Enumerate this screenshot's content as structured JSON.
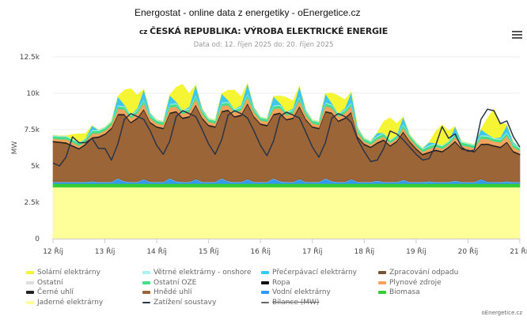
{
  "page_title": "Energostat - online data z energetiky - oEnergetice.cz",
  "chart_header": {
    "country_code": "cz",
    "title": "ČESKÁ REPUBLIKA: VÝROBA ELEKTRICKÉ ENERGIE",
    "subtitle": "Data od: 12. říjen 2025 do: 20. říjen 2025",
    "menu_icon": "hamburger-icon"
  },
  "credit": "oEnergetice.cz",
  "chart_data": {
    "type": "area",
    "stacked": true,
    "ylabel": "MW",
    "ylim": [
      0,
      12500
    ],
    "y_ticks": [
      "0",
      "2.5k",
      "5k",
      "7.5k",
      "10k",
      "12.5k"
    ],
    "y_tick_values": [
      0,
      2500,
      5000,
      7500,
      10000,
      12500
    ],
    "x_ticks": [
      "12 Říj",
      "13 Říj",
      "14 Říj",
      "15 Říj",
      "16 Říj",
      "17 Říj",
      "18 Říj",
      "19 Říj",
      "20 Říj",
      "21 Říj"
    ],
    "x_resolution": "3 hours from 12 Říj 00:00 to 21 Říj 00:00",
    "grid": "horizontal",
    "legend_position": "bottom",
    "series": [
      {
        "name": "Jaderné elektrárny",
        "color": "#ffff99",
        "constant": 3530
      },
      {
        "name": "Biomasa",
        "color": "#33cc33",
        "constant": 250
      },
      {
        "name": "Vodní elektrárny",
        "color": "#3399ee",
        "values": [
          100,
          100,
          100,
          100,
          100,
          100,
          150,
          100,
          100,
          100,
          350,
          150,
          100,
          100,
          300,
          100,
          100,
          100,
          350,
          150,
          100,
          100,
          300,
          100,
          100,
          100,
          350,
          150,
          100,
          100,
          300,
          100,
          100,
          100,
          350,
          150,
          100,
          100,
          300,
          100,
          100,
          100,
          350,
          150,
          100,
          100,
          300,
          100,
          100,
          100,
          200,
          100,
          100,
          100,
          250,
          100,
          100,
          100,
          150,
          100,
          100,
          100,
          200,
          100,
          100,
          100,
          300,
          120,
          100,
          100,
          150,
          100,
          100
        ]
      },
      {
        "name": "Ostatní",
        "color": "#dddddd",
        "constant": 20
      },
      {
        "name": "Zpracování odpadu",
        "color": "#7a5533",
        "constant": 50
      },
      {
        "name": "Hnědé uhlí",
        "color": "#9c6537",
        "values": [
          2690,
          2640,
          2590,
          2390,
          2190,
          2490,
          2890,
          2990,
          3190,
          3590,
          4290,
          4490,
          3990,
          4290,
          4690,
          3990,
          3690,
          3590,
          4390,
          4690,
          4290,
          4390,
          4990,
          4290,
          3790,
          3690,
          4490,
          4790,
          4390,
          4490,
          5090,
          4390,
          3890,
          3790,
          4290,
          4590,
          4190,
          4290,
          4890,
          4190,
          3690,
          3590,
          4490,
          4590,
          4090,
          4290,
          4490,
          2990,
          2490,
          2290,
          2490,
          2790,
          2390,
          2690,
          3190,
          2690,
          2190,
          1790,
          1890,
          2090,
          1990,
          2290,
          2590,
          2190,
          2090,
          1990,
          2290,
          2490,
          2390,
          2290,
          2590,
          1990,
          1800
        ]
      },
      {
        "name": "Černé uhlí",
        "color": "#222222",
        "constant": 80
      },
      {
        "name": "Ropa",
        "color": "#111111",
        "constant": 10
      },
      {
        "name": "Plynové zdroje",
        "color": "#f5a35c",
        "values": [
          150,
          150,
          200,
          200,
          150,
          150,
          250,
          200,
          200,
          200,
          350,
          300,
          250,
          300,
          400,
          250,
          200,
          200,
          350,
          300,
          250,
          300,
          400,
          250,
          200,
          200,
          350,
          300,
          250,
          300,
          400,
          250,
          200,
          200,
          350,
          300,
          250,
          300,
          400,
          250,
          200,
          200,
          350,
          300,
          250,
          300,
          400,
          250,
          150,
          150,
          200,
          200,
          150,
          150,
          250,
          200,
          150,
          150,
          200,
          200,
          150,
          150,
          250,
          200,
          200,
          200,
          350,
          300,
          250,
          300,
          400,
          250,
          200
        ]
      },
      {
        "name": "Ostatní OZE",
        "color": "#44dd88",
        "constant": 180
      },
      {
        "name": "Větrné elektrárny - onshore",
        "color": "#aaf3ee",
        "constant": 60
      },
      {
        "name": "Přečerpávací elektrárny",
        "color": "#3cc6f0",
        "values": [
          0,
          0,
          0,
          0,
          0,
          0,
          300,
          0,
          0,
          0,
          600,
          100,
          0,
          100,
          700,
          100,
          0,
          0,
          600,
          100,
          0,
          100,
          700,
          100,
          0,
          0,
          600,
          100,
          0,
          100,
          700,
          100,
          0,
          0,
          600,
          100,
          0,
          100,
          700,
          100,
          0,
          0,
          600,
          100,
          0,
          100,
          700,
          100,
          0,
          0,
          200,
          0,
          0,
          0,
          500,
          0,
          0,
          0,
          200,
          0,
          0,
          0,
          500,
          0,
          0,
          0,
          400,
          100,
          0,
          100,
          500,
          100,
          0
        ]
      },
      {
        "name": "Solární elektrárny",
        "color": "#f5f533",
        "values": [
          0,
          0,
          0,
          300,
          600,
          300,
          0,
          0,
          0,
          0,
          0,
          1000,
          1800,
          900,
          0,
          0,
          0,
          0,
          0,
          1000,
          1800,
          900,
          0,
          0,
          0,
          0,
          0,
          700,
          1300,
          600,
          0,
          0,
          0,
          0,
          0,
          500,
          1000,
          500,
          0,
          0,
          0,
          0,
          0,
          700,
          1200,
          600,
          0,
          0,
          0,
          0,
          0,
          800,
          1500,
          800,
          0,
          0,
          0,
          0,
          0,
          800,
          1400,
          700,
          0,
          0,
          0,
          0,
          0,
          1100,
          2000,
          1000,
          0,
          0,
          0
        ]
      }
    ],
    "lines": [
      {
        "name": "Zatížení soustavy",
        "color": "#2a3448",
        "values": [
          5200,
          5000,
          5600,
          7000,
          6600,
          6600,
          6900,
          6200,
          6200,
          5400,
          6500,
          8200,
          8600,
          8400,
          8200,
          7400,
          6400,
          5800,
          6700,
          8400,
          8800,
          8600,
          8400,
          7500,
          6500,
          5800,
          6800,
          8500,
          8800,
          8600,
          8300,
          7400,
          6400,
          5700,
          6700,
          8400,
          8700,
          8500,
          8300,
          7300,
          6300,
          5600,
          6600,
          8300,
          8600,
          8400,
          8000,
          6800,
          6000,
          5300,
          5400,
          6200,
          7400,
          7200,
          6800,
          6300,
          5800,
          5400,
          5500,
          6400,
          7700,
          6900,
          7200,
          6300,
          6000,
          6100,
          8200,
          8900,
          8800,
          7900,
          8100,
          7000,
          6300
        ]
      },
      {
        "name": "Bilance (MW)",
        "color": "#666666",
        "hidden": true
      }
    ]
  },
  "legend": [
    [
      {
        "label": "Solární elektrárny",
        "color": "#f5f533"
      },
      {
        "label": "Větrné elektrárny - onshore",
        "color": "#aaf3ee"
      },
      {
        "label": "Přečerpávací elektrárny",
        "color": "#3cc6f0"
      },
      {
        "label": "Zpracování odpadu",
        "color": "#7a5533"
      }
    ],
    [
      {
        "label": "Ostatní",
        "color": "#dddddd"
      },
      {
        "label": "Ostatní OZE",
        "color": "#44dd88"
      },
      {
        "label": "Ropa",
        "color": "#111111"
      },
      {
        "label": "Plynové zdroje",
        "color": "#f5a35c"
      }
    ],
    [
      {
        "label": "Černé uhlí",
        "color": "#222222"
      },
      {
        "label": "Hnědé uhlí",
        "color": "#9c6537"
      },
      {
        "label": "Vodní elektrárny",
        "color": "#3399ee"
      },
      {
        "label": "Biomasa",
        "color": "#33cc33"
      }
    ],
    [
      {
        "label": "Jaderné elektrárny",
        "color": "#ffff99"
      },
      {
        "label": "Zatížení soustavy",
        "color": "#2a3448",
        "type": "line"
      },
      {
        "label": "Bilance (MW)",
        "color": "#666666",
        "type": "line",
        "hidden": true
      }
    ]
  ]
}
